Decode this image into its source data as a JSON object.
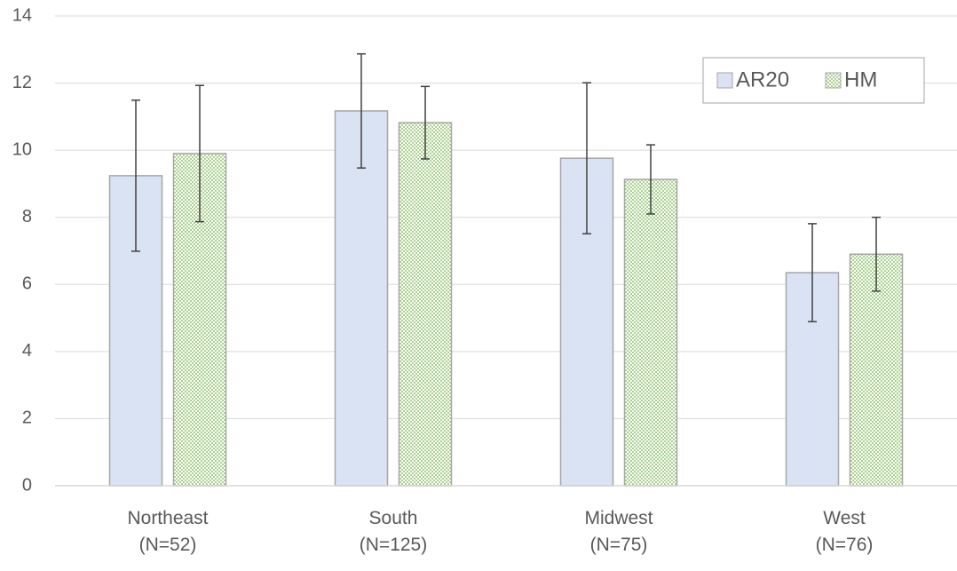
{
  "chart_data": {
    "type": "bar",
    "categories": [
      "Northeast\n(N=52)",
      "South\n(N=125)",
      "Midwest\n(N=75)",
      "West\n(N=76)"
    ],
    "series": [
      {
        "name": "AR20",
        "color": "#dae3f3",
        "values": [
          9.24,
          11.17,
          9.76,
          6.35
        ],
        "errors": [
          2.25,
          1.7,
          2.25,
          1.46
        ]
      },
      {
        "name": "HM",
        "color": "#a9d18e",
        "values": [
          9.9,
          10.82,
          9.13,
          6.9
        ],
        "errors": [
          2.03,
          1.08,
          1.03,
          1.1
        ]
      }
    ],
    "ylim": [
      0,
      14
    ],
    "yticks": [
      0,
      2,
      4,
      6,
      8,
      10,
      12,
      14
    ],
    "grid": true,
    "legend": "top-right"
  }
}
